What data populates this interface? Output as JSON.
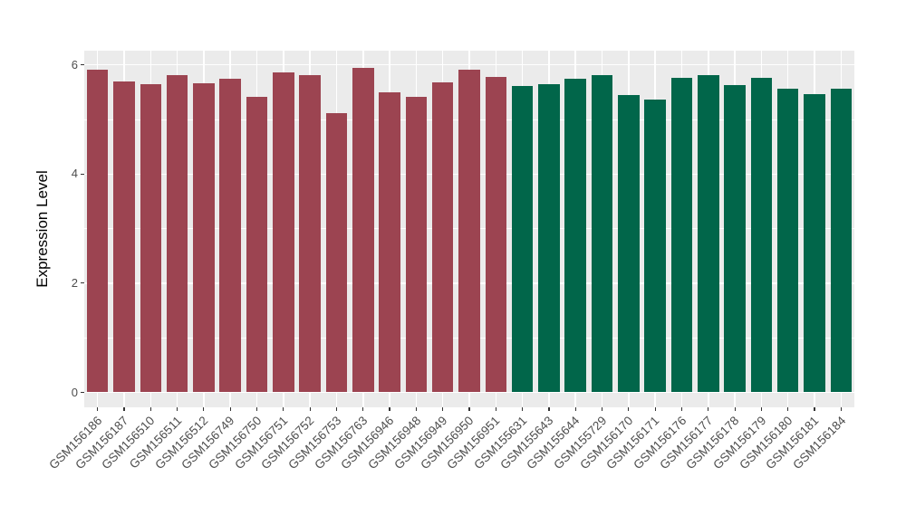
{
  "chart_data": {
    "type": "bar",
    "title": "",
    "xlabel": "",
    "ylabel": "Expression Level",
    "ylim": [
      0,
      6.25
    ],
    "yticks": [
      0,
      2,
      4,
      6
    ],
    "yminor": [
      1,
      3,
      5
    ],
    "grid": true,
    "legend_position": "none",
    "panel_bg": "#EBEBEB",
    "grid_color": "#FFFFFF",
    "tick_color": "#333333",
    "axis_text_color": "#4D4D4D",
    "categories": [
      "GSM156186",
      "GSM156187",
      "GSM156510",
      "GSM156511",
      "GSM156512",
      "GSM156749",
      "GSM156750",
      "GSM156751",
      "GSM156752",
      "GSM156753",
      "GSM156763",
      "GSM156946",
      "GSM156948",
      "GSM156949",
      "GSM156950",
      "GSM156951",
      "GSM155631",
      "GSM155643",
      "GSM155644",
      "GSM155729",
      "GSM156170",
      "GSM156171",
      "GSM156176",
      "GSM156177",
      "GSM156178",
      "GSM156179",
      "GSM156180",
      "GSM156181",
      "GSM156184"
    ],
    "values": [
      5.92,
      5.69,
      5.64,
      5.82,
      5.67,
      5.75,
      5.42,
      5.87,
      5.82,
      5.12,
      5.95,
      5.5,
      5.41,
      5.68,
      5.92,
      5.78,
      5.62,
      5.64,
      5.75,
      5.82,
      5.45,
      5.37,
      5.76,
      5.81,
      5.63,
      5.77,
      5.57,
      5.46,
      5.56
    ],
    "bar_groups": [
      "maroon",
      "maroon",
      "maroon",
      "maroon",
      "maroon",
      "maroon",
      "maroon",
      "maroon",
      "maroon",
      "maroon",
      "maroon",
      "maroon",
      "maroon",
      "maroon",
      "maroon",
      "maroon",
      "green",
      "green",
      "green",
      "green",
      "green",
      "green",
      "green",
      "green",
      "green",
      "green",
      "green",
      "green",
      "green"
    ],
    "group_colors": {
      "maroon": "#9C4451",
      "green": "#01664A"
    }
  }
}
